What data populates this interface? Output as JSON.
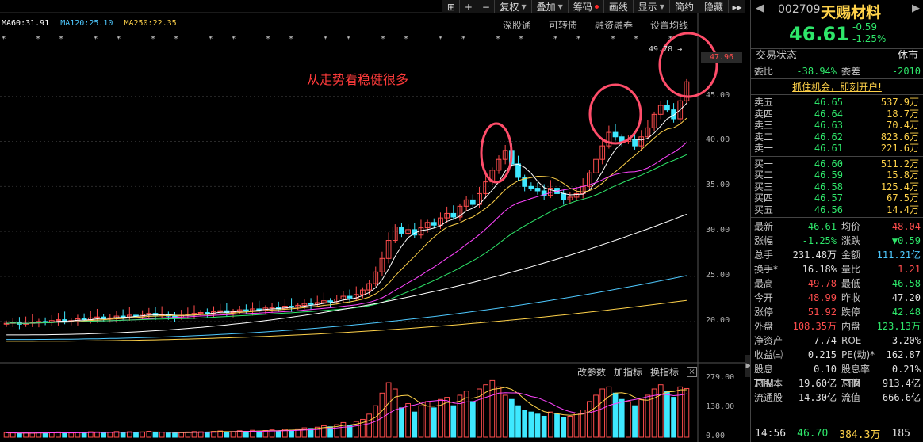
{
  "toolbar": {
    "icons": [
      "grid-icon",
      "plus-icon",
      "minus-icon"
    ],
    "buttons": [
      {
        "label": "复权",
        "caret": true
      },
      {
        "label": "叠加",
        "caret": true
      },
      {
        "label": "筹码",
        "dot": true
      },
      {
        "label": "画线"
      },
      {
        "label": "显示",
        "caret": true
      },
      {
        "label": "简约"
      },
      {
        "label": "隐藏"
      }
    ],
    "forward_icon": "▸▸"
  },
  "ma_legend": [
    {
      "label": "MA60:31.91",
      "color": "#ffffff"
    },
    {
      "label": "MA120:25.10",
      "color": "#4ec9ff"
    },
    {
      "label": "MA250:22.35",
      "color": "#ffd24a"
    }
  ],
  "sub_links": [
    "深股通",
    "可转债",
    "融资融券",
    "设置均线"
  ],
  "annotation": "从走势看稳健很多",
  "high_label": "49.78",
  "price_flag": "47.96",
  "price_axis": [
    "45.00",
    "40.00",
    "35.00",
    "30.00",
    "25.00",
    "20.00"
  ],
  "vol_axis": [
    "279.00",
    "138.00",
    "0.00"
  ],
  "vol_tools": {
    "params": "改参数",
    "add": "加指标",
    "switch": "换指标",
    "close": "×"
  },
  "colors": {
    "up": "#ff4d4d",
    "down": "#3ee8ff",
    "ma5": "#ffffff",
    "ma10": "#ffd24a",
    "ma20": "#ff44ff",
    "ma30": "#2ee66a",
    "circle": "#ff4d6a"
  },
  "stock": {
    "code": "002709",
    "name": "天赐材料",
    "price": "46.61",
    "change": "-0.59",
    "change_pct": "-1.25%",
    "nav_left": "◀",
    "nav_right": "▶"
  },
  "status": {
    "label": "交易状态",
    "value": "休市"
  },
  "weibi": {
    "l1": "委比",
    "v1": "-38.94%",
    "l2": "委差",
    "v2": "-2010"
  },
  "promo": "抓住机会，即刻开户!",
  "sell": [
    {
      "label": "卖五",
      "price": "46.65",
      "vol": "537.9万"
    },
    {
      "label": "卖四",
      "price": "46.64",
      "vol": "18.7万"
    },
    {
      "label": "卖三",
      "price": "46.63",
      "vol": "70.4万"
    },
    {
      "label": "卖二",
      "price": "46.62",
      "vol": "823.6万"
    },
    {
      "label": "卖一",
      "price": "46.61",
      "vol": "221.6万"
    }
  ],
  "buy": [
    {
      "label": "买一",
      "price": "46.60",
      "vol": "511.2万"
    },
    {
      "label": "买二",
      "price": "46.59",
      "vol": "15.8万"
    },
    {
      "label": "买三",
      "price": "46.58",
      "vol": "125.4万"
    },
    {
      "label": "买四",
      "price": "46.57",
      "vol": "67.5万"
    },
    {
      "label": "买五",
      "price": "46.56",
      "vol": "14.4万"
    }
  ],
  "stats": [
    {
      "l1": "最新",
      "v1": "46.61",
      "c1": "g",
      "l2": "均价",
      "v2": "48.04",
      "c2": "r"
    },
    {
      "l1": "涨幅",
      "v1": "-1.25%",
      "c1": "g",
      "l2": "涨跌",
      "v2": "▼0.59",
      "c2": "g"
    },
    {
      "l1": "总手",
      "v1": "231.48万",
      "c1": "w",
      "l2": "金额",
      "v2": "111.21亿",
      "c2": "c"
    },
    {
      "l1": "换手*",
      "v1": "16.18%",
      "c1": "w",
      "l2": "量比",
      "v2": "1.21",
      "c2": "r"
    },
    {
      "l1": "最高",
      "v1": "49.78",
      "c1": "r",
      "l2": "最低",
      "v2": "46.58",
      "c2": "g"
    },
    {
      "l1": "今开",
      "v1": "48.99",
      "c1": "r",
      "l2": "昨收",
      "v2": "47.20",
      "c2": "w"
    },
    {
      "l1": "涨停",
      "v1": "51.92",
      "c1": "r",
      "l2": "跌停",
      "v2": "42.48",
      "c2": "g"
    },
    {
      "l1": "外盘",
      "v1": "108.35万",
      "c1": "r",
      "l2": "内盘",
      "v2": "123.13万",
      "c2": "g"
    },
    {
      "l1": "净资产",
      "v1": "7.74",
      "c1": "w",
      "l2": "ROE",
      "v2": "3.20%",
      "c2": "w"
    },
    {
      "l1": "收益㈢",
      "v1": "0.215",
      "c1": "w",
      "l2": "PE(动)*",
      "v2": "162.87",
      "c2": "w"
    },
    {
      "l1": "股息TTM",
      "v1": "0.10",
      "c1": "w",
      "l2": "股息率TTM",
      "v2": "0.21%",
      "c2": "w"
    },
    {
      "l1": "总股本",
      "v1": "19.60亿",
      "c1": "w",
      "l2": "总值",
      "v2": "913.4亿",
      "c2": "w"
    },
    {
      "l1": "流通股",
      "v1": "14.30亿",
      "c1": "w",
      "l2": "流值",
      "v2": "666.6亿",
      "c2": "w"
    }
  ],
  "bottom": {
    "time": "14:56",
    "price": "46.70",
    "vol": "384.3万",
    "n": "185"
  },
  "chart_data": {
    "type": "candlestick",
    "price_range": [
      17,
      52
    ],
    "volume_range": [
      0,
      279
    ],
    "closes": [
      19.8,
      19.9,
      19.7,
      19.8,
      19.9,
      20.0,
      19.9,
      20.1,
      20.2,
      20.0,
      20.1,
      20.3,
      20.2,
      20.4,
      20.5,
      20.3,
      20.4,
      20.6,
      20.5,
      20.7,
      20.6,
      20.8,
      20.9,
      20.7,
      20.8,
      20.6,
      20.5,
      20.7,
      20.8,
      20.9,
      21.0,
      20.9,
      21.1,
      21.2,
      21.0,
      21.1,
      21.3,
      21.2,
      21.4,
      21.3,
      21.5,
      21.6,
      21.4,
      21.7,
      21.6,
      21.8,
      22.0,
      21.9,
      22.1,
      22.3,
      22.2,
      22.5,
      22.8,
      22.6,
      23.0,
      23.5,
      24.2,
      25.5,
      27.0,
      29.0,
      30.5,
      29.8,
      30.2,
      29.6,
      30.4,
      31.0,
      30.7,
      31.5,
      32.0,
      31.6,
      32.8,
      33.5,
      33.0,
      34.2,
      35.5,
      36.8,
      38.0,
      39.0,
      37.5,
      36.0,
      35.0,
      34.8,
      34.5,
      34.0,
      34.8,
      34.2,
      33.5,
      33.8,
      34.2,
      35.0,
      36.5,
      38.0,
      39.5,
      41.0,
      40.5,
      40.0,
      40.2,
      39.5,
      40.5,
      41.5,
      43.0,
      44.0,
      43.5,
      42.5,
      44.5,
      46.61
    ],
    "volumes": [
      22,
      20,
      18,
      21,
      19,
      23,
      20,
      22,
      25,
      21,
      20,
      24,
      22,
      26,
      25,
      21,
      23,
      27,
      24,
      26,
      22,
      25,
      28,
      23,
      24,
      20,
      19,
      22,
      25,
      27,
      26,
      24,
      28,
      30,
      25,
      27,
      31,
      28,
      33,
      29,
      32,
      35,
      30,
      38,
      34,
      40,
      45,
      42,
      48,
      55,
      50,
      60,
      70,
      58,
      75,
      85,
      110,
      150,
      210,
      260,
      230,
      140,
      160,
      120,
      150,
      170,
      140,
      180,
      190,
      150,
      200,
      220,
      170,
      230,
      250,
      270,
      240,
      200,
      180,
      150,
      130,
      120,
      110,
      100,
      120,
      110,
      95,
      100,
      115,
      130,
      170,
      200,
      230,
      240,
      210,
      180,
      170,
      150,
      180,
      200,
      230,
      250,
      220,
      190,
      240,
      232
    ]
  }
}
